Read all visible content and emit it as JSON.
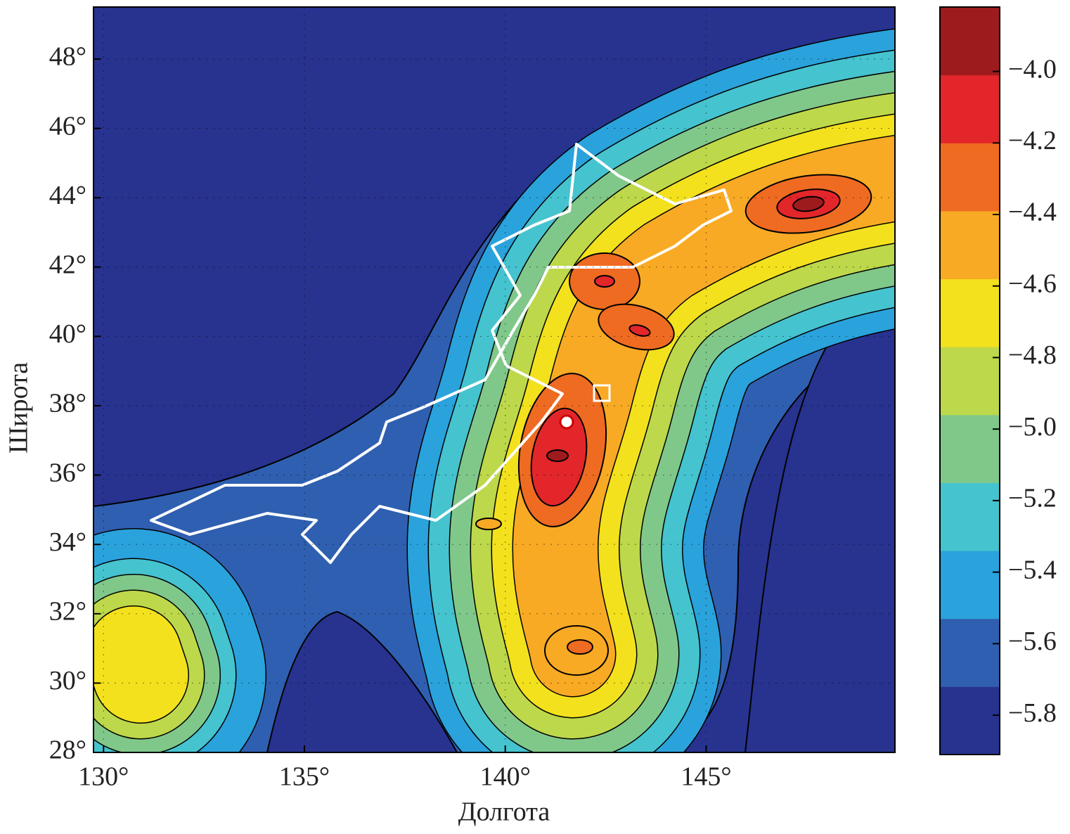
{
  "chart_data": {
    "type": "contour",
    "xlabel": "Долгота",
    "ylabel": "Широта",
    "xlim": [
      129.75,
      149.7
    ],
    "ylim": [
      28,
      49.5
    ],
    "xticks": [
      {
        "value": 130,
        "label": "130°"
      },
      {
        "value": 135,
        "label": "135°"
      },
      {
        "value": 140,
        "label": "140°"
      },
      {
        "value": 145,
        "label": "145°"
      }
    ],
    "yticks": [
      {
        "value": 28,
        "label": "28°"
      },
      {
        "value": 30,
        "label": "30°"
      },
      {
        "value": 32,
        "label": "32°"
      },
      {
        "value": 34,
        "label": "34°"
      },
      {
        "value": 36,
        "label": "36°"
      },
      {
        "value": 38,
        "label": "38°"
      },
      {
        "value": 40,
        "label": "40°"
      },
      {
        "value": 42,
        "label": "42°"
      },
      {
        "value": 44,
        "label": "44°"
      },
      {
        "value": 46,
        "label": "46°"
      },
      {
        "value": 48,
        "label": "48°"
      }
    ],
    "grid": true,
    "colorbar": {
      "lim": [
        -5.91,
        -3.82
      ],
      "ticks": [
        {
          "value": -5.8,
          "label": "−5.8"
        },
        {
          "value": -5.6,
          "label": "−5.6"
        },
        {
          "value": -5.4,
          "label": "−5.4"
        },
        {
          "value": -5.2,
          "label": "−5.2"
        },
        {
          "value": -5.0,
          "label": "−5.0"
        },
        {
          "value": -4.8,
          "label": "−4.8"
        },
        {
          "value": -4.6,
          "label": "−4.6"
        },
        {
          "value": -4.4,
          "label": "−4.4"
        },
        {
          "value": -4.2,
          "label": "−4.2"
        },
        {
          "value": -4.0,
          "label": "−4.0"
        }
      ],
      "colormap": [
        "#27338f",
        "#2f5fb0",
        "#2aa2dc",
        "#45c3cf",
        "#80c88a",
        "#bdd84a",
        "#f3e11d",
        "#f8aa24",
        "#ef6b22",
        "#e2262a",
        "#9e1b1d"
      ]
    }
  }
}
